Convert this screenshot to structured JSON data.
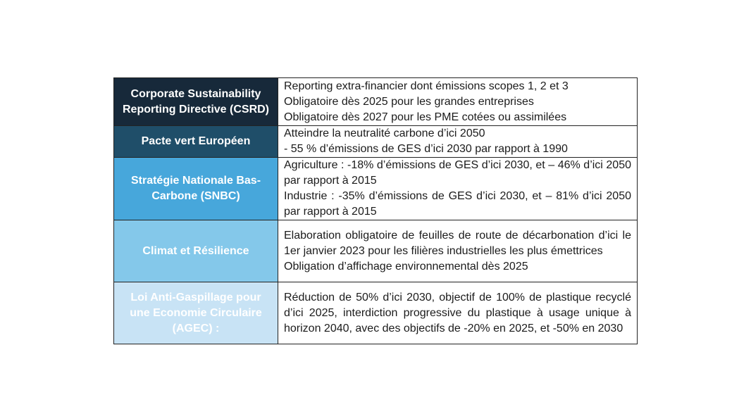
{
  "table": {
    "rows": [
      {
        "title": "Corporate Sustainability Reporting Directive (CSRD)",
        "bg": "#17293A",
        "title_color": "#FFFFFF",
        "items": [
          "Reporting extra-financier dont émissions scopes 1, 2 et 3",
          "Obligatoire dès 2025 pour les grandes entreprises",
          "Obligatoire dès 2027 pour les PME cotées ou assimilées"
        ]
      },
      {
        "title": "Pacte vert Européen",
        "bg": "#1F4E69",
        "title_color": "#FFFFFF",
        "items": [
          "Atteindre la neutralité carbone d’ici 2050",
          "- 55 % d’émissions de GES d’ici 2030 par rapport à 1990"
        ]
      },
      {
        "title": "Stratégie Nationale Bas-Carbone (SNBC)",
        "bg": "#47A7DB",
        "title_color": "#FFFFFF",
        "items": [
          "Agriculture : -18% d’émissions de GES d’ici 2030, et – 46% d’ici 2050 par rapport à 2015",
          "Industrie : -35% d’émissions de GES d’ici 2030, et – 81% d’ici 2050 par rapport à 2015"
        ]
      },
      {
        "title": "Climat et Résilience",
        "bg": "#84C8EA",
        "title_color": "#FFFFFF",
        "items": [
          "Elaboration obligatoire de feuilles de route de décarbonation d’ici le 1er janvier 2023 pour les filières industrielles les plus émettrices",
          "Obligation d’affichage environnemental dès 2025"
        ]
      },
      {
        "title": "Loi Anti-Gaspillage pour une Economie Circulaire (AGEC) :",
        "bg": "#C8E3F5",
        "title_color": "#FFFFFF",
        "items": [
          "Réduction de 50% d’ici 2030, objectif de 100% de plastique recyclé d’ici 2025, interdiction progressive du plastique à usage unique à horizon 2040, avec des objectifs de -20% en 2025, et -50% en 2030"
        ]
      }
    ]
  }
}
